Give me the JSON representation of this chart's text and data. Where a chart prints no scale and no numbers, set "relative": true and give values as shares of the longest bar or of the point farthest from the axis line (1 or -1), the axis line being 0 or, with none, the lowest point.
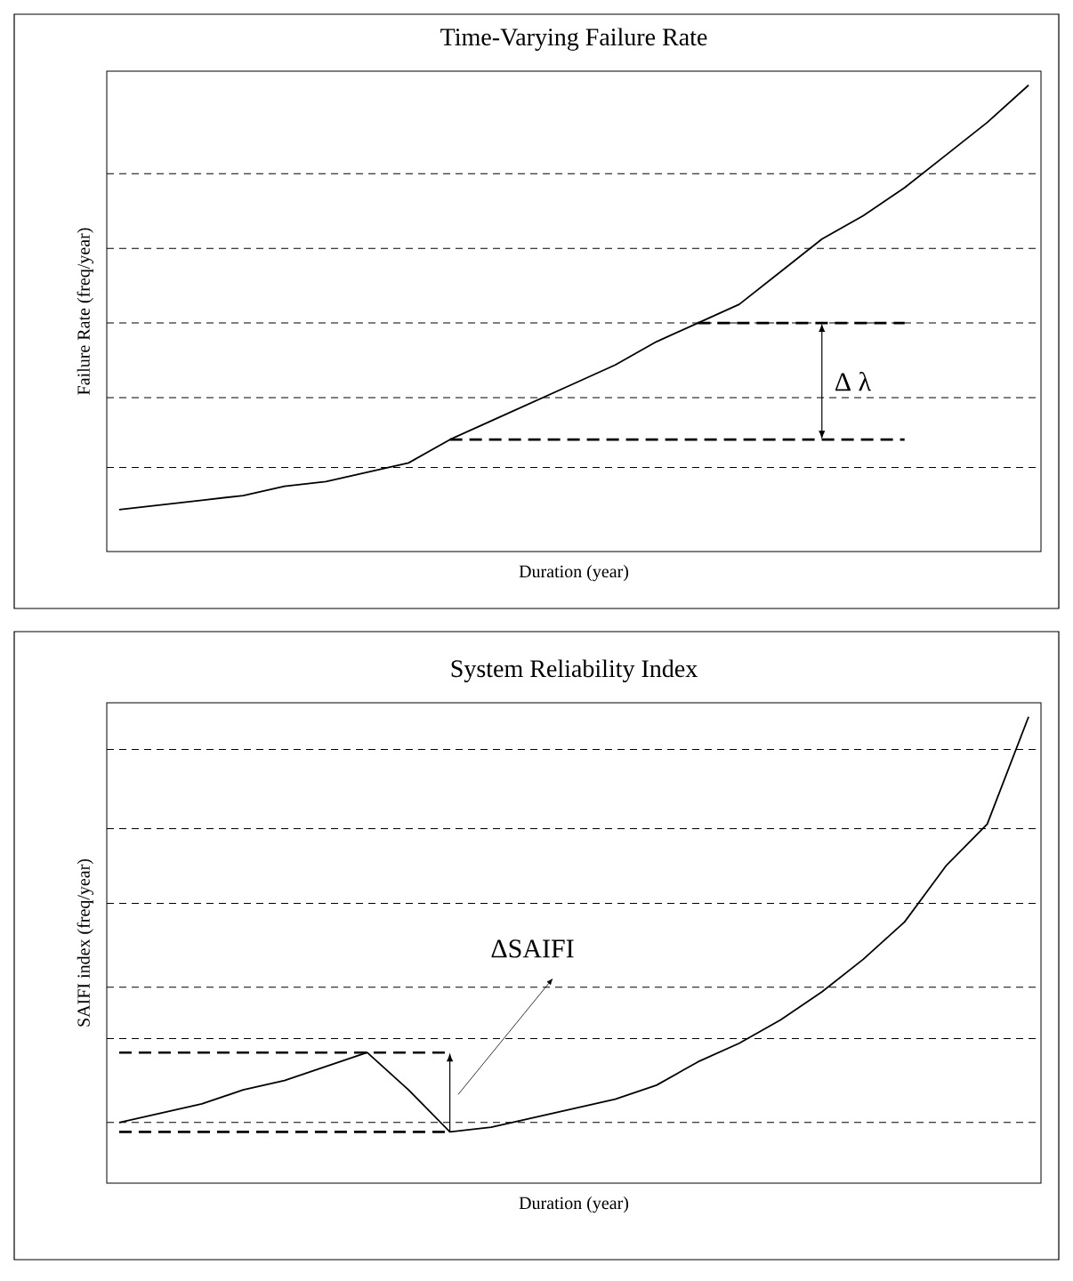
{
  "chart_data": [
    {
      "type": "line",
      "title": "Time-Varying Failure Rate",
      "xlabel": "Duration  (year)",
      "ylabel": "Failure Rate  (freq/year)",
      "relative": true,
      "categories": [
        null,
        null,
        null,
        null,
        null,
        null,
        null,
        null,
        null,
        null,
        null,
        null,
        null,
        null,
        null,
        null,
        null,
        null,
        null,
        null,
        null,
        null,
        null
      ],
      "series": [
        {
          "color": "#000000",
          "values": [
            0.09,
            0.1,
            0.11,
            0.12,
            0.14,
            0.15,
            0.17,
            0.19,
            0.24,
            0.28,
            0.32,
            0.36,
            0.4,
            0.45,
            0.49,
            0.53,
            0.6,
            0.67,
            0.72,
            0.78,
            0.85,
            0.92,
            1.0
          ]
        },
        {
          "color": "#000000",
          "line_style": "dashed",
          "values": [
            null,
            null,
            null,
            null,
            null,
            null,
            null,
            null,
            null,
            null,
            null,
            null,
            null,
            null,
            0.49,
            0.49,
            0.49,
            0.49,
            0.49,
            0.49,
            null,
            null,
            null
          ]
        },
        {
          "color": "#000000",
          "line_style": "dashed",
          "values": [
            null,
            null,
            null,
            null,
            null,
            null,
            null,
            null,
            0.24,
            0.24,
            0.24,
            0.24,
            0.24,
            0.24,
            0.24,
            0.24,
            0.24,
            0.24,
            0.24,
            0.24,
            null,
            null,
            null
          ]
        }
      ],
      "ref_lines": [
        {
          "axis": "y",
          "value": 0.81,
          "color": "#000000",
          "line_style": "dashed"
        },
        {
          "axis": "y",
          "value": 0.65,
          "color": "#000000",
          "line_style": "dashed"
        },
        {
          "axis": "y",
          "value": 0.49,
          "color": "#000000",
          "line_style": "dashed"
        },
        {
          "axis": "y",
          "value": 0.33,
          "color": "#000000",
          "line_style": "dashed"
        },
        {
          "axis": "y",
          "value": 0.18,
          "color": "#000000",
          "line_style": "dashed"
        }
      ],
      "annotations": [
        "Δ λ"
      ]
    },
    {
      "type": "line",
      "title": "System Reliability Index",
      "xlabel": "Duration  (year)",
      "ylabel": "SAIFI index  (freq/year)",
      "relative": true,
      "categories": [
        null,
        null,
        null,
        null,
        null,
        null,
        null,
        null,
        null,
        null,
        null,
        null,
        null,
        null,
        null,
        null,
        null,
        null,
        null,
        null,
        null,
        null,
        null
      ],
      "series": [
        {
          "color": "#000000",
          "values": [
            0.13,
            0.15,
            0.17,
            0.2,
            0.22,
            0.25,
            0.28,
            0.2,
            0.11,
            0.12,
            0.14,
            0.16,
            0.18,
            0.21,
            0.26,
            0.3,
            0.35,
            0.41,
            0.48,
            0.56,
            0.68,
            0.77,
            1.0
          ]
        },
        {
          "color": "#000000",
          "line_style": "dashed",
          "values": [
            0.28,
            0.28,
            0.28,
            0.28,
            0.28,
            0.28,
            0.28,
            0.28,
            0.28,
            null,
            null,
            null,
            null,
            null,
            null,
            null,
            null,
            null,
            null,
            null,
            null,
            null,
            null
          ]
        },
        {
          "color": "#000000",
          "line_style": "dashed",
          "values": [
            0.11,
            0.11,
            0.11,
            0.11,
            0.11,
            0.11,
            0.11,
            0.11,
            0.11,
            null,
            null,
            null,
            null,
            null,
            null,
            null,
            null,
            null,
            null,
            null,
            null,
            null,
            null
          ]
        }
      ],
      "ref_lines": [
        {
          "axis": "y",
          "value": 0.93,
          "color": "#000000",
          "line_style": "dashed"
        },
        {
          "axis": "y",
          "value": 0.76,
          "color": "#000000",
          "line_style": "dashed"
        },
        {
          "axis": "y",
          "value": 0.6,
          "color": "#000000",
          "line_style": "dashed"
        },
        {
          "axis": "y",
          "value": 0.42,
          "color": "#000000",
          "line_style": "dashed"
        },
        {
          "axis": "y",
          "value": 0.31,
          "color": "#000000",
          "line_style": "dashed"
        },
        {
          "axis": "y",
          "value": 0.13,
          "color": "#000000",
          "line_style": "dashed"
        }
      ],
      "annotations": [
        "ΔSAIFI"
      ]
    }
  ]
}
